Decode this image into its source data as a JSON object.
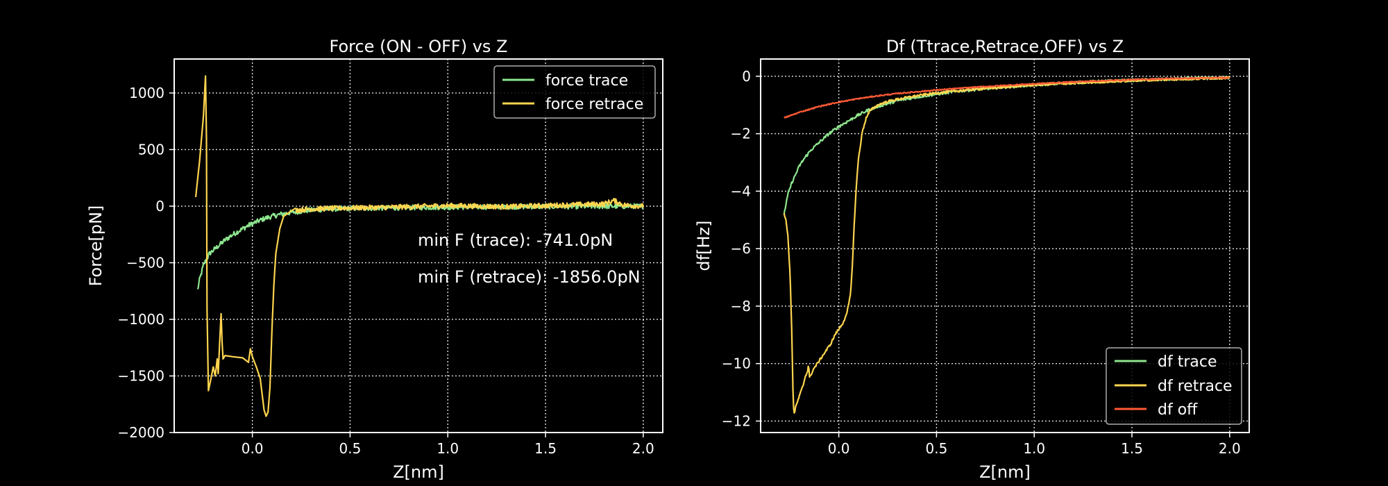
{
  "colors": {
    "background": "#000000",
    "foreground": "#ffffff",
    "trace": "#8ee68e",
    "retrace": "#ffd54f",
    "off": "#ff5a36"
  },
  "chart_data": [
    {
      "type": "line",
      "title": "Force (ON - OFF) vs Z",
      "xlabel": "Z[nm]",
      "ylabel": "Force[pN]",
      "xlim": [
        -0.4,
        2.1
      ],
      "ylim": [
        -2000,
        1300
      ],
      "xticks": [
        0.0,
        0.5,
        1.0,
        1.5,
        2.0
      ],
      "xtick_labels": [
        "0.0",
        "0.5",
        "1.0",
        "1.5",
        "2.0"
      ],
      "yticks": [
        -2000,
        -1500,
        -1000,
        -500,
        0,
        500,
        1000
      ],
      "ytick_labels": [
        "−2000",
        "−1500",
        "−1000",
        "−500",
        "0",
        "500",
        "1000"
      ],
      "grid": true,
      "legend_position": "top-right",
      "annotations": [
        "min F (trace): -741.0pN",
        "min F (retrace): -1856.0pN"
      ],
      "series": [
        {
          "name": "force trace",
          "color_key": "trace",
          "noise": 22,
          "x": [
            -0.28,
            -0.27,
            -0.25,
            -0.22,
            -0.18,
            -0.14,
            -0.1,
            -0.06,
            -0.02,
            0.02,
            0.06,
            0.1,
            0.15,
            0.2,
            0.25,
            0.3,
            0.4,
            0.5,
            0.7,
            0.9,
            1.1,
            1.3,
            1.5,
            1.7,
            1.9,
            2.0
          ],
          "y": [
            -741,
            -650,
            -520,
            -420,
            -360,
            -300,
            -250,
            -210,
            -170,
            -140,
            -110,
            -90,
            -70,
            -55,
            -45,
            -35,
            -25,
            -20,
            -15,
            -10,
            -8,
            -5,
            -3,
            -2,
            -1,
            0
          ]
        },
        {
          "name": "force retrace",
          "color_key": "retrace",
          "noise": 22,
          "noise_from": 0.22,
          "x": [
            -0.29,
            -0.27,
            -0.25,
            -0.24,
            -0.235,
            -0.232,
            -0.225,
            -0.215,
            -0.2,
            -0.19,
            -0.18,
            -0.175,
            -0.17,
            -0.165,
            -0.16,
            -0.155,
            -0.15,
            -0.14,
            -0.1,
            -0.05,
            -0.02,
            -0.01,
            0.0,
            0.02,
            0.04,
            0.06,
            0.07,
            0.08,
            0.09,
            0.1,
            0.11,
            0.12,
            0.14,
            0.16,
            0.2,
            0.25,
            0.3,
            0.4,
            0.5,
            0.7,
            1.0,
            1.3,
            1.6,
            1.8,
            1.85,
            1.9,
            2.0
          ],
          "y": [
            80,
            400,
            800,
            1150,
            600,
            -900,
            -1630,
            -1550,
            -1420,
            -1500,
            -1350,
            -1480,
            -1300,
            -1120,
            -950,
            -1200,
            -1350,
            -1320,
            -1330,
            -1340,
            -1380,
            -1260,
            -1330,
            -1420,
            -1520,
            -1800,
            -1856,
            -1820,
            -1600,
            -1100,
            -700,
            -420,
            -200,
            -90,
            -40,
            -30,
            -25,
            -20,
            -15,
            -10,
            5,
            -5,
            10,
            20,
            50,
            10,
            0
          ]
        }
      ]
    },
    {
      "type": "line",
      "title": "Df (Ttrace,Retrace,OFF) vs Z",
      "xlabel": "Z[nm]",
      "ylabel": "df[Hz]",
      "xlim": [
        -0.4,
        2.1
      ],
      "ylim": [
        -12.4,
        0.6
      ],
      "xticks": [
        0.0,
        0.5,
        1.0,
        1.5,
        2.0
      ],
      "xtick_labels": [
        "0.0",
        "0.5",
        "1.0",
        "1.5",
        "2.0"
      ],
      "yticks": [
        -12,
        -10,
        -8,
        -6,
        -4,
        -2,
        0
      ],
      "ytick_labels": [
        "−12",
        "−10",
        "−8",
        "−6",
        "−4",
        "−2",
        "0"
      ],
      "grid": true,
      "legend_position": "lower-right",
      "series": [
        {
          "name": "df trace",
          "color_key": "trace",
          "noise": 0.05,
          "x": [
            -0.28,
            -0.26,
            -0.24,
            -0.22,
            -0.2,
            -0.17,
            -0.14,
            -0.1,
            -0.05,
            0.0,
            0.05,
            0.1,
            0.15,
            0.2,
            0.3,
            0.4,
            0.5,
            0.6,
            0.8,
            1.0,
            1.2,
            1.4,
            1.6,
            1.8,
            2.0
          ],
          "y": [
            -4.8,
            -4.1,
            -3.7,
            -3.4,
            -3.1,
            -2.8,
            -2.55,
            -2.3,
            -2.0,
            -1.75,
            -1.55,
            -1.35,
            -1.18,
            -1.05,
            -0.85,
            -0.72,
            -0.62,
            -0.52,
            -0.4,
            -0.3,
            -0.22,
            -0.16,
            -0.12,
            -0.08,
            -0.05
          ]
        },
        {
          "name": "df retrace",
          "color_key": "retrace",
          "noise": 0.04,
          "x": [
            -0.28,
            -0.27,
            -0.26,
            -0.25,
            -0.24,
            -0.235,
            -0.23,
            -0.22,
            -0.2,
            -0.18,
            -0.17,
            -0.16,
            -0.155,
            -0.15,
            -0.13,
            -0.1,
            -0.07,
            -0.04,
            -0.02,
            -0.01,
            0.0,
            0.02,
            0.04,
            0.06,
            0.07,
            0.08,
            0.09,
            0.1,
            0.12,
            0.14,
            0.16,
            0.2,
            0.25,
            0.3,
            0.4,
            0.5,
            0.7,
            1.0,
            1.2,
            1.5,
            1.8,
            2.0
          ],
          "y": [
            -4.8,
            -5.0,
            -5.6,
            -6.8,
            -9.0,
            -10.8,
            -11.8,
            -11.5,
            -11.1,
            -10.7,
            -10.4,
            -10.3,
            -10.0,
            -10.5,
            -10.2,
            -9.9,
            -9.6,
            -9.3,
            -9.0,
            -8.9,
            -8.8,
            -8.6,
            -8.3,
            -7.6,
            -6.5,
            -5.0,
            -3.8,
            -2.9,
            -1.95,
            -1.45,
            -1.2,
            -1.0,
            -0.88,
            -0.8,
            -0.68,
            -0.58,
            -0.45,
            -0.3,
            -0.24,
            -0.15,
            -0.09,
            -0.05
          ]
        },
        {
          "name": "df off",
          "color_key": "off",
          "noise": 0.02,
          "x": [
            -0.28,
            -0.2,
            -0.1,
            0.0,
            0.1,
            0.2,
            0.3,
            0.5,
            0.7,
            0.9,
            1.1,
            1.3,
            1.5,
            1.7,
            2.0
          ],
          "y": [
            -1.45,
            -1.25,
            -1.05,
            -0.9,
            -0.78,
            -0.68,
            -0.6,
            -0.48,
            -0.38,
            -0.3,
            -0.23,
            -0.17,
            -0.12,
            -0.08,
            -0.05
          ]
        }
      ]
    }
  ]
}
